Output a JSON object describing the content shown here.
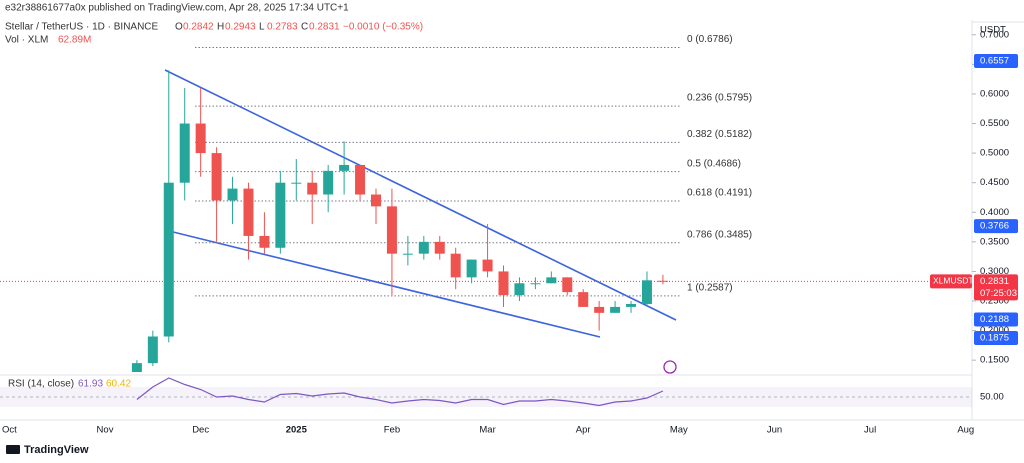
{
  "header": {
    "publisher": "e32r38861677a0x published on TradingView.com, Apr 28, 2025 17:34 UTC+1"
  },
  "footer": {
    "logo": "TradingView"
  },
  "chart_data": {
    "type": "candlestick",
    "title": "Stellar / TetherUS · 1D · BINANCE",
    "legend": [
      {
        "key": "O",
        "value": "0.2842"
      },
      {
        "key": "H",
        "value": "0.2943"
      },
      {
        "key": "L",
        "value": "0.2783"
      },
      {
        "key": "C",
        "value": "0.2831"
      }
    ],
    "change": "−0.0010 (−0.35%)",
    "volume_label": "Vol · XLM",
    "volume_value": "62.89M",
    "currency": "USDT",
    "categories": [
      "Oct",
      null,
      null,
      null,
      null,
      null,
      "Nov",
      null,
      null,
      null,
      null,
      null,
      "Dec",
      null,
      null,
      null,
      null,
      null,
      "2025",
      null,
      null,
      null,
      null,
      null,
      "Feb",
      null,
      null,
      null,
      null,
      null,
      "Mar",
      null,
      null,
      null,
      null,
      null,
      "Apr",
      null,
      null,
      null,
      null,
      null,
      "May",
      null,
      null,
      null,
      null,
      null,
      "Jun",
      null,
      null,
      null,
      null,
      null,
      "Jul",
      null,
      null,
      null,
      null,
      null,
      "Aug"
    ],
    "open": [
      null,
      null,
      null,
      null,
      null,
      null,
      null,
      null,
      0.12,
      0.145,
      0.19,
      0.45,
      0.55,
      0.5,
      0.42,
      0.44,
      0.36,
      0.34,
      0.45,
      0.45,
      0.43,
      0.47,
      0.48,
      0.43,
      0.41,
      0.33,
      0.33,
      0.35,
      0.33,
      0.29,
      0.32,
      0.3,
      0.26,
      0.28,
      0.28,
      0.29,
      0.265,
      0.24,
      0.23,
      0.24,
      0.245,
      0.2842,
      null,
      null,
      null,
      null,
      null,
      null,
      null,
      null,
      null,
      null,
      null,
      null,
      null,
      null,
      null,
      null,
      null,
      null,
      null
    ],
    "high": [
      null,
      null,
      null,
      null,
      null,
      null,
      null,
      null,
      0.15,
      0.2,
      0.64,
      0.61,
      0.61,
      0.51,
      0.46,
      0.45,
      0.4,
      0.47,
      0.49,
      0.47,
      0.48,
      0.52,
      0.48,
      0.44,
      0.44,
      0.36,
      0.36,
      0.36,
      0.34,
      0.32,
      0.38,
      0.31,
      0.29,
      0.29,
      0.3,
      0.29,
      0.27,
      0.25,
      0.25,
      0.25,
      0.3,
      0.2943,
      null,
      null,
      null,
      null,
      null,
      null,
      null,
      null,
      null,
      null,
      null,
      null,
      null,
      null,
      null,
      null,
      null,
      null,
      null
    ],
    "low": [
      null,
      null,
      null,
      null,
      null,
      null,
      null,
      null,
      0.118,
      0.14,
      0.18,
      0.42,
      0.46,
      0.35,
      0.38,
      0.32,
      0.33,
      0.33,
      0.42,
      0.38,
      0.4,
      0.43,
      0.42,
      0.38,
      0.26,
      0.31,
      0.32,
      0.32,
      0.27,
      0.28,
      0.29,
      0.24,
      0.25,
      0.27,
      0.28,
      0.26,
      0.24,
      0.2,
      0.23,
      0.23,
      0.24,
      0.2783,
      null,
      null,
      null,
      null,
      null,
      null,
      null,
      null,
      null,
      null,
      null,
      null,
      null,
      null,
      null,
      null,
      null,
      null,
      null
    ],
    "close": [
      null,
      null,
      null,
      null,
      null,
      null,
      null,
      null,
      0.145,
      0.19,
      0.45,
      0.55,
      0.5,
      0.42,
      0.44,
      0.36,
      0.34,
      0.45,
      0.45,
      0.43,
      0.47,
      0.48,
      0.43,
      0.41,
      0.33,
      0.33,
      0.35,
      0.33,
      0.29,
      0.32,
      0.3,
      0.26,
      0.28,
      0.28,
      0.29,
      0.265,
      0.24,
      0.23,
      0.24,
      0.245,
      0.285,
      0.2831,
      null,
      null,
      null,
      null,
      null,
      null,
      null,
      null,
      null,
      null,
      null,
      null,
      null,
      null,
      null,
      null,
      null,
      null,
      null
    ],
    "ylim": [
      0.13,
      0.725
    ],
    "yticks": [
      {
        "value": 0.15,
        "label": "0.1500"
      },
      {
        "value": 0.2,
        "label": "0.2000"
      },
      {
        "value": 0.25,
        "label": "0.2500"
      },
      {
        "value": 0.3,
        "label": "0.3000"
      },
      {
        "value": 0.35,
        "label": "0.3500"
      },
      {
        "value": 0.4,
        "label": "0.4000"
      },
      {
        "value": 0.45,
        "label": "0.4500"
      },
      {
        "value": 0.5,
        "label": "0.5000"
      },
      {
        "value": 0.55,
        "label": "0.5500"
      },
      {
        "value": 0.6,
        "label": "0.6000"
      },
      {
        "value": 0.65,
        "label": "0.6500"
      },
      {
        "value": 0.7,
        "label": "0.7000"
      }
    ],
    "colors": {
      "up": "#26a69a",
      "down": "#ef5350"
    },
    "fib_levels": [
      {
        "label": "0 (0.6786)",
        "value": 0.6786
      },
      {
        "label": "0.236 (0.5795)",
        "value": 0.5795
      },
      {
        "label": "0.382 (0.5182)",
        "value": 0.5182
      },
      {
        "label": "0.5 (0.4686)",
        "value": 0.4686
      },
      {
        "label": "0.618 (0.4191)",
        "value": 0.4191
      },
      {
        "label": "0.786 (0.3485)",
        "value": 0.3485
      },
      {
        "label": "1 (0.2587)",
        "value": 0.2587
      }
    ],
    "price_markers": [
      {
        "value": 0.6557,
        "label": "0.6557",
        "color": "#2962ff"
      },
      {
        "value": 0.3766,
        "label": "0.3766",
        "color": "#2962ff"
      },
      {
        "value": 0.2188,
        "label": "0.2188",
        "color": "#2962ff"
      },
      {
        "value": 0.1875,
        "label": "0.1875",
        "color": "#2962ff"
      }
    ],
    "last_price": {
      "symbol": "XLMUSDT",
      "value": 0.2831,
      "label": "0.2831",
      "countdown": "07:25:03",
      "color": "#f23645"
    },
    "rsi": {
      "label": "RSI (14, close)",
      "value": "61.93",
      "ma": "60.42",
      "color": "#7e57c2",
      "values": [
        null,
        null,
        null,
        null,
        null,
        null,
        null,
        null,
        45,
        70,
        88,
        75,
        65,
        50,
        52,
        45,
        40,
        55,
        57,
        52,
        56,
        58,
        50,
        45,
        38,
        42,
        45,
        43,
        38,
        45,
        45,
        35,
        42,
        42,
        45,
        42,
        38,
        33,
        40,
        42,
        48,
        62,
        null,
        null,
        null,
        null,
        null,
        null,
        null,
        null,
        null,
        null,
        null,
        null,
        null,
        null,
        null,
        null,
        null,
        null,
        null
      ],
      "ylim": [
        10,
        90
      ],
      "yticks": [
        {
          "value": 50,
          "label": "50.00"
        }
      ]
    }
  }
}
